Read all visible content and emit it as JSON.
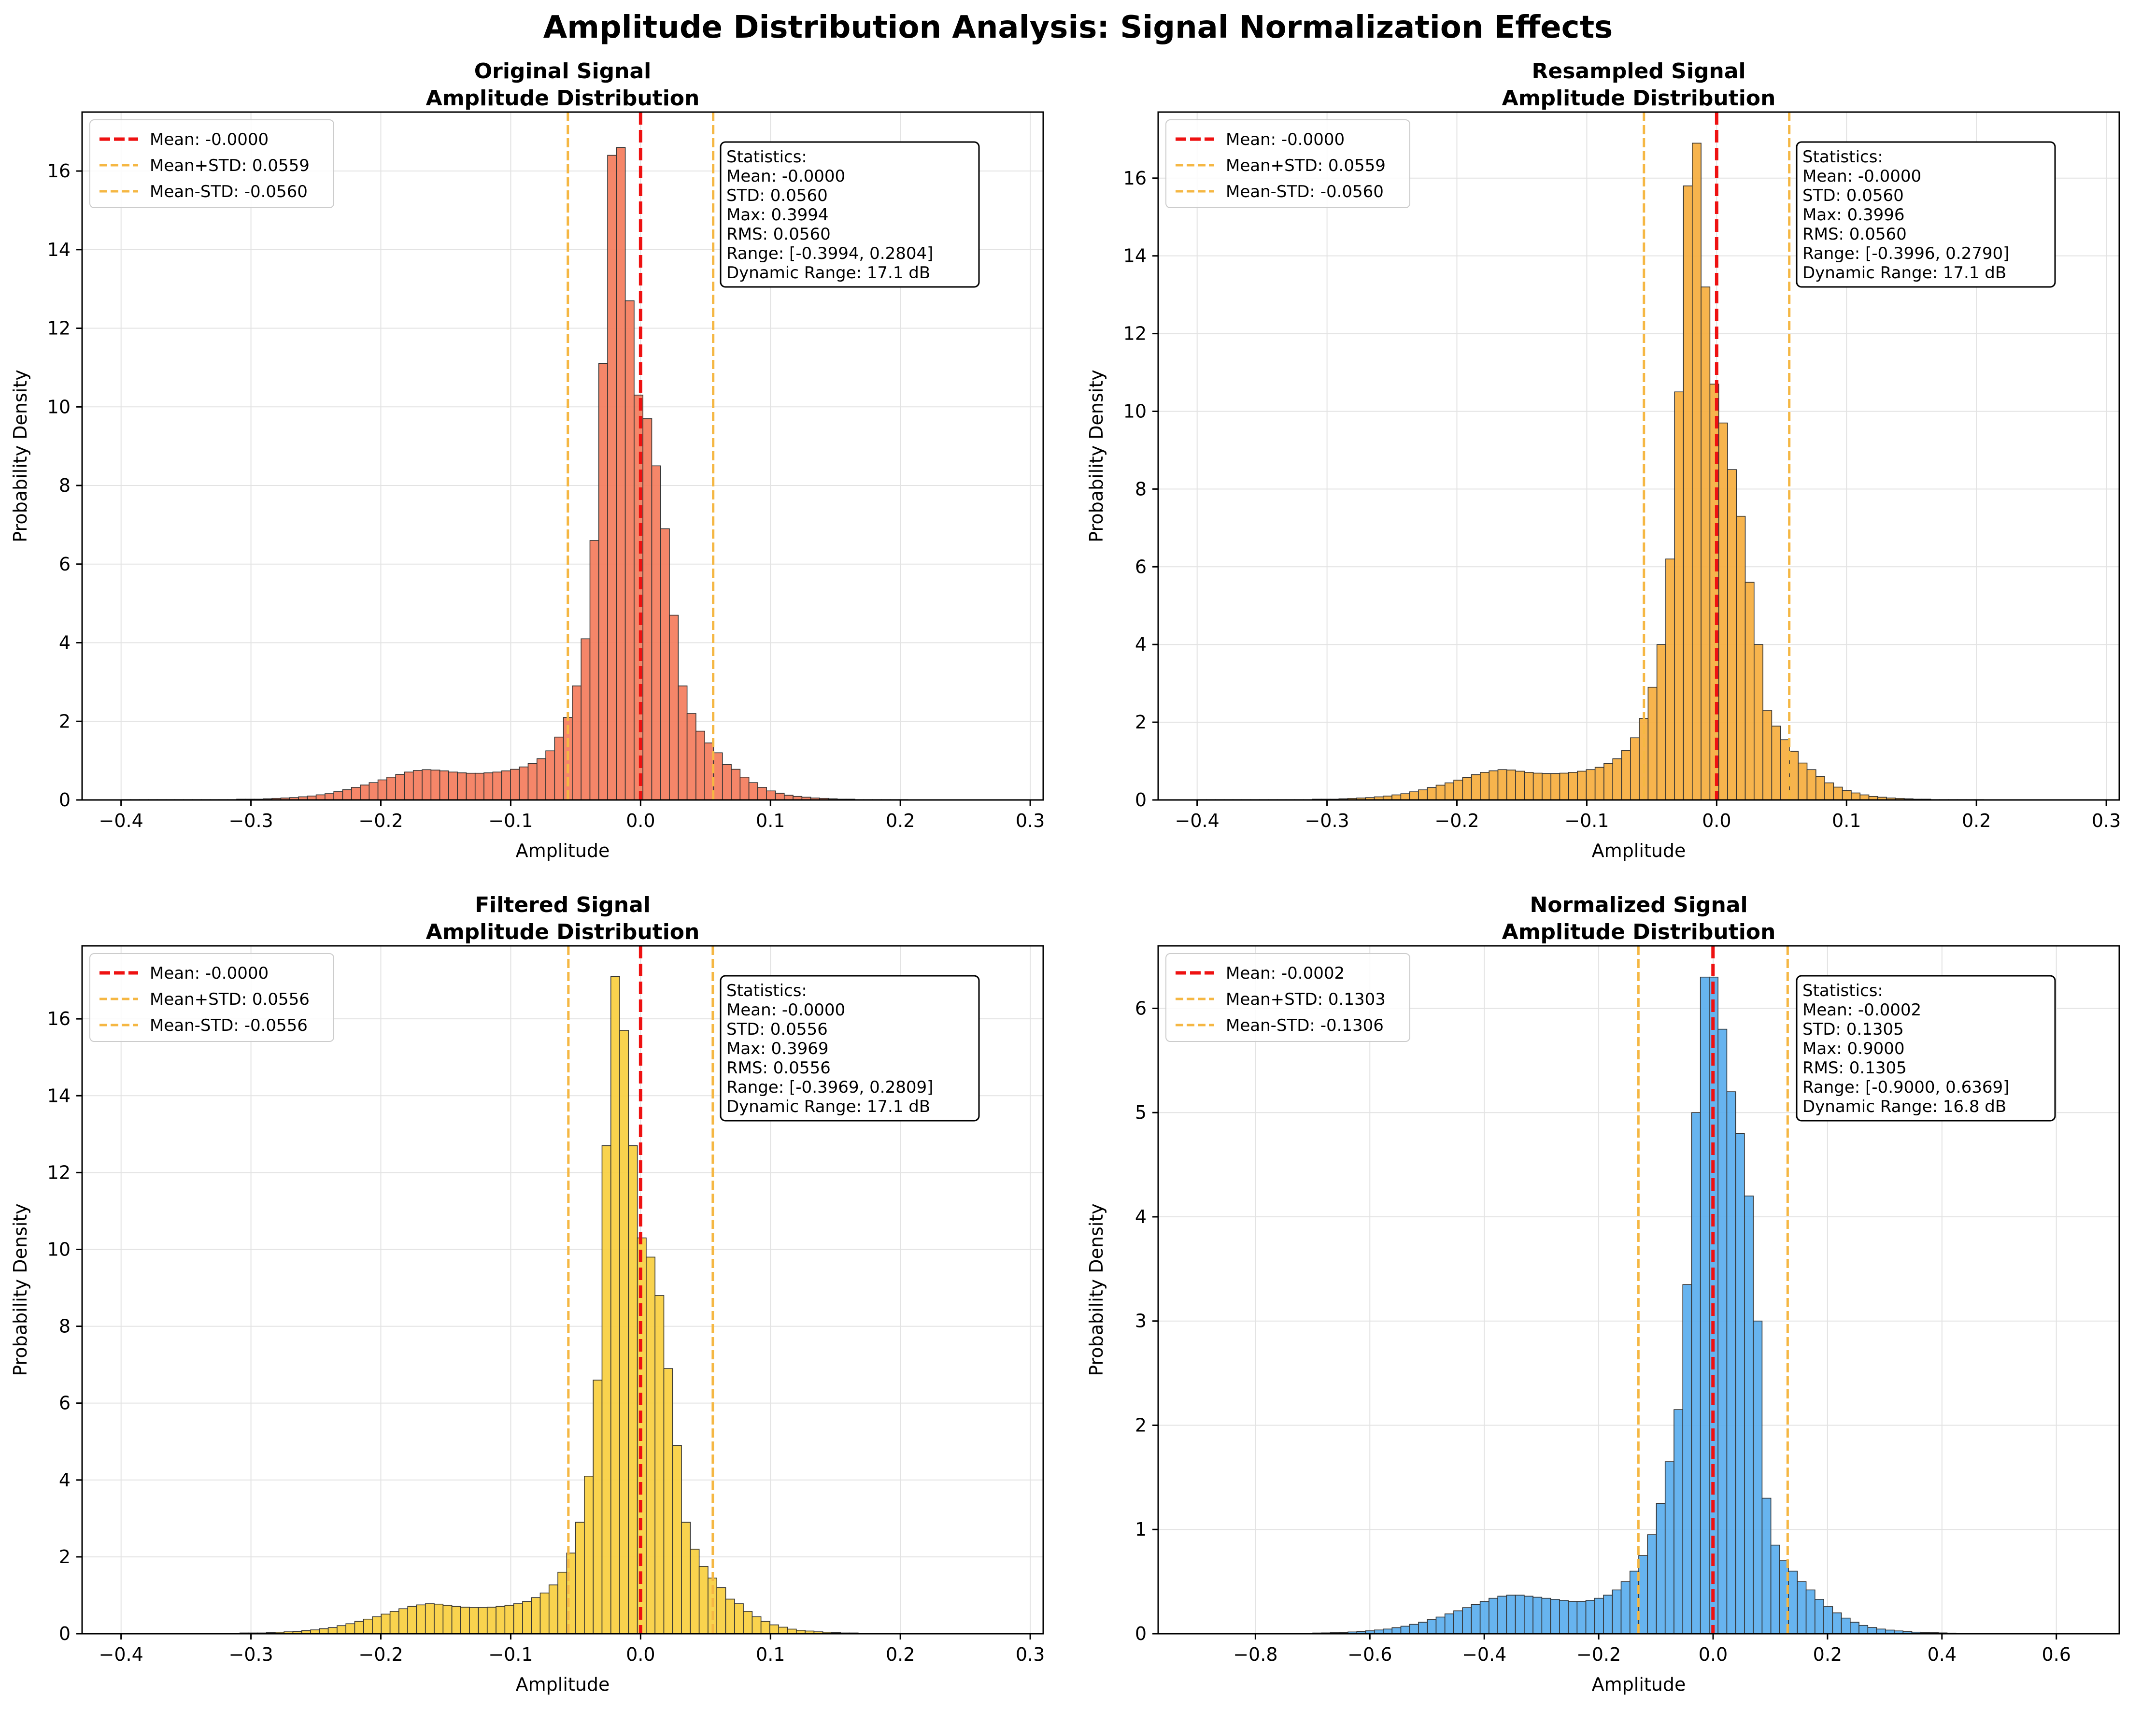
{
  "figure_title": "Amplitude Distribution Analysis: Signal Normalization Effects",
  "colors": {
    "mean_line": "#ee1111",
    "std_line": "#f5b743",
    "grid": "#e3e3e3",
    "bar_edge": "#333333"
  },
  "chart_data": [
    {
      "type": "bar",
      "title": "Original Signal\nAmplitude Distribution",
      "xlabel": "Amplitude",
      "ylabel": "Probability Density",
      "xlim": [
        -0.43,
        0.31
      ],
      "ylim": [
        0,
        17.5
      ],
      "xticks": [
        -0.4,
        -0.3,
        -0.2,
        -0.1,
        0.0,
        0.1,
        0.2,
        0.3
      ],
      "xtick_labels": [
        "−0.4",
        "−0.3",
        "−0.2",
        "−0.1",
        "0.0",
        "0.1",
        "0.2",
        "0.3"
      ],
      "yticks": [
        0,
        2,
        4,
        6,
        8,
        10,
        12,
        14,
        16
      ],
      "ytick_labels": [
        "0",
        "2",
        "4",
        "6",
        "8",
        "10",
        "12",
        "14",
        "16"
      ],
      "bar_color": "#f47c5c",
      "bin_start": -0.3994,
      "bin_width": 0.0068,
      "values": [
        0.01,
        0.01,
        0.01,
        0.01,
        0.01,
        0.01,
        0.01,
        0.01,
        0.01,
        0.01,
        0.01,
        0.01,
        0.01,
        0.02,
        0.02,
        0.02,
        0.03,
        0.04,
        0.05,
        0.06,
        0.08,
        0.1,
        0.13,
        0.16,
        0.21,
        0.26,
        0.32,
        0.38,
        0.44,
        0.51,
        0.58,
        0.65,
        0.71,
        0.75,
        0.77,
        0.76,
        0.74,
        0.71,
        0.69,
        0.68,
        0.68,
        0.69,
        0.71,
        0.74,
        0.78,
        0.84,
        0.93,
        1.05,
        1.25,
        1.6,
        2.1,
        2.9,
        4.1,
        6.6,
        11.1,
        16.4,
        16.6,
        12.7,
        10.3,
        9.7,
        8.5,
        6.9,
        4.7,
        2.9,
        2.2,
        1.75,
        1.45,
        1.2,
        0.9,
        0.78,
        0.58,
        0.44,
        0.32,
        0.23,
        0.17,
        0.12,
        0.09,
        0.07,
        0.05,
        0.04,
        0.03,
        0.02,
        0.02,
        0.01,
        0.01,
        0.01,
        0.01,
        0.01,
        0.01,
        0.0,
        0.0,
        0.0,
        0.0,
        0.0,
        0.0,
        0.0,
        0.0,
        0.0,
        0.0,
        0.0
      ],
      "mean": -0.0,
      "mean_plus_std": 0.0559,
      "mean_minus_std": -0.056,
      "legend": [
        "Mean: -0.0000",
        "Mean+STD: 0.0559",
        "Mean-STD: -0.0560"
      ],
      "stats": [
        "Statistics:",
        "Mean: -0.0000",
        "STD: 0.0560",
        "Max: 0.3994",
        "RMS: 0.0560",
        "Range: [-0.3994, 0.2804]",
        "Dynamic Range: 17.1 dB"
      ]
    },
    {
      "type": "bar",
      "title": "Resampled Signal\nAmplitude Distribution",
      "xlabel": "Amplitude",
      "ylabel": "Probability Density",
      "xlim": [
        -0.43,
        0.31
      ],
      "ylim": [
        0,
        17.7
      ],
      "xticks": [
        -0.4,
        -0.3,
        -0.2,
        -0.1,
        0.0,
        0.1,
        0.2,
        0.3
      ],
      "xtick_labels": [
        "−0.4",
        "−0.3",
        "−0.2",
        "−0.1",
        "0.0",
        "0.1",
        "0.2",
        "0.3"
      ],
      "yticks": [
        0,
        2,
        4,
        6,
        8,
        10,
        12,
        14,
        16
      ],
      "ytick_labels": [
        "0",
        "2",
        "4",
        "6",
        "8",
        "10",
        "12",
        "14",
        "16"
      ],
      "bar_color": "#f6ae3e",
      "bin_start": -0.3996,
      "bin_width": 0.0068,
      "values": [
        0.01,
        0.01,
        0.01,
        0.01,
        0.01,
        0.01,
        0.01,
        0.01,
        0.01,
        0.01,
        0.01,
        0.01,
        0.01,
        0.02,
        0.02,
        0.02,
        0.03,
        0.04,
        0.05,
        0.06,
        0.08,
        0.1,
        0.13,
        0.16,
        0.21,
        0.26,
        0.32,
        0.38,
        0.44,
        0.51,
        0.58,
        0.65,
        0.71,
        0.75,
        0.78,
        0.77,
        0.74,
        0.71,
        0.69,
        0.68,
        0.68,
        0.69,
        0.71,
        0.74,
        0.78,
        0.84,
        0.94,
        1.06,
        1.27,
        1.6,
        2.1,
        2.9,
        4.0,
        6.2,
        10.5,
        15.8,
        16.9,
        13.2,
        10.7,
        9.7,
        8.5,
        7.3,
        5.6,
        4.0,
        2.3,
        1.9,
        1.55,
        1.25,
        0.95,
        0.78,
        0.6,
        0.44,
        0.33,
        0.24,
        0.18,
        0.13,
        0.09,
        0.07,
        0.05,
        0.04,
        0.03,
        0.02,
        0.02,
        0.01,
        0.01,
        0.01,
        0.01,
        0.01,
        0.01,
        0.0,
        0.0,
        0.0,
        0.0,
        0.0,
        0.0,
        0.0,
        0.0,
        0.0,
        0.0,
        0.0
      ],
      "mean": -0.0,
      "mean_plus_std": 0.0559,
      "mean_minus_std": -0.056,
      "legend": [
        "Mean: -0.0000",
        "Mean+STD: 0.0559",
        "Mean-STD: -0.0560"
      ],
      "stats": [
        "Statistics:",
        "Mean: -0.0000",
        "STD: 0.0560",
        "Max: 0.3996",
        "RMS: 0.0560",
        "Range: [-0.3996, 0.2790]",
        "Dynamic Range: 17.1 dB"
      ]
    },
    {
      "type": "bar",
      "title": "Filtered Signal\nAmplitude Distribution",
      "xlabel": "Amplitude",
      "ylabel": "Probability Density",
      "xlim": [
        -0.43,
        0.31
      ],
      "ylim": [
        0,
        17.9
      ],
      "xticks": [
        -0.4,
        -0.3,
        -0.2,
        -0.1,
        0.0,
        0.1,
        0.2,
        0.3
      ],
      "xtick_labels": [
        "−0.4",
        "−0.3",
        "−0.2",
        "−0.1",
        "0.0",
        "0.1",
        "0.2",
        "0.3"
      ],
      "yticks": [
        0,
        2,
        4,
        6,
        8,
        10,
        12,
        14,
        16
      ],
      "ytick_labels": [
        "0",
        "2",
        "4",
        "6",
        "8",
        "10",
        "12",
        "14",
        "16"
      ],
      "bar_color": "#f9cf3f",
      "bin_start": -0.3969,
      "bin_width": 0.0068,
      "values": [
        0.01,
        0.01,
        0.01,
        0.01,
        0.01,
        0.01,
        0.01,
        0.01,
        0.01,
        0.01,
        0.01,
        0.01,
        0.01,
        0.02,
        0.02,
        0.02,
        0.03,
        0.04,
        0.05,
        0.06,
        0.08,
        0.1,
        0.13,
        0.16,
        0.21,
        0.26,
        0.32,
        0.38,
        0.44,
        0.51,
        0.58,
        0.65,
        0.71,
        0.75,
        0.78,
        0.77,
        0.74,
        0.71,
        0.69,
        0.68,
        0.68,
        0.69,
        0.71,
        0.74,
        0.78,
        0.84,
        0.94,
        1.06,
        1.27,
        1.6,
        2.1,
        2.9,
        4.1,
        6.6,
        12.7,
        17.1,
        15.7,
        12.7,
        10.3,
        9.8,
        8.8,
        6.9,
        4.9,
        2.9,
        2.2,
        1.75,
        1.45,
        1.2,
        0.9,
        0.78,
        0.58,
        0.44,
        0.32,
        0.23,
        0.17,
        0.12,
        0.09,
        0.07,
        0.05,
        0.04,
        0.03,
        0.02,
        0.02,
        0.01,
        0.01,
        0.01,
        0.01,
        0.01,
        0.01,
        0.0,
        0.0,
        0.0,
        0.0,
        0.0,
        0.0,
        0.0,
        0.0,
        0.0,
        0.0,
        0.0
      ],
      "mean": -0.0,
      "mean_plus_std": 0.0556,
      "mean_minus_std": -0.0556,
      "legend": [
        "Mean: -0.0000",
        "Mean+STD: 0.0556",
        "Mean-STD: -0.0556"
      ],
      "stats": [
        "Statistics:",
        "Mean: -0.0000",
        "STD: 0.0556",
        "Max: 0.3969",
        "RMS: 0.0556",
        "Range: [-0.3969, 0.2809]",
        "Dynamic Range: 17.1 dB"
      ]
    },
    {
      "type": "bar",
      "title": "Normalized Signal\nAmplitude Distribution",
      "xlabel": "Amplitude",
      "ylabel": "Probability Density",
      "xlim": [
        -0.97,
        0.71
      ],
      "ylim": [
        0,
        6.6
      ],
      "xticks": [
        -0.8,
        -0.6,
        -0.4,
        -0.2,
        0.0,
        0.2,
        0.4,
        0.6
      ],
      "xtick_labels": [
        "−0.8",
        "−0.6",
        "−0.4",
        "−0.2",
        "0.0",
        "0.2",
        "0.4",
        "0.6"
      ],
      "yticks": [
        0,
        1,
        2,
        3,
        4,
        5,
        6
      ],
      "ytick_labels": [
        "0",
        "1",
        "2",
        "3",
        "4",
        "5",
        "6"
      ],
      "bar_color": "#5aaeee",
      "bin_start": -0.9,
      "bin_width": 0.0154,
      "values": [
        0.005,
        0.005,
        0.005,
        0.005,
        0.005,
        0.005,
        0.005,
        0.005,
        0.005,
        0.005,
        0.005,
        0.005,
        0.005,
        0.007,
        0.008,
        0.01,
        0.013,
        0.017,
        0.022,
        0.028,
        0.036,
        0.045,
        0.058,
        0.072,
        0.09,
        0.11,
        0.135,
        0.16,
        0.19,
        0.22,
        0.25,
        0.28,
        0.31,
        0.34,
        0.36,
        0.37,
        0.37,
        0.36,
        0.35,
        0.34,
        0.33,
        0.32,
        0.31,
        0.31,
        0.32,
        0.34,
        0.37,
        0.42,
        0.5,
        0.6,
        0.75,
        0.95,
        1.25,
        1.65,
        2.15,
        3.35,
        5.0,
        6.3,
        6.3,
        5.8,
        5.2,
        4.8,
        4.2,
        3.0,
        1.3,
        0.85,
        0.7,
        0.6,
        0.5,
        0.42,
        0.33,
        0.26,
        0.2,
        0.15,
        0.11,
        0.08,
        0.06,
        0.045,
        0.035,
        0.027,
        0.02,
        0.015,
        0.012,
        0.01,
        0.008,
        0.006,
        0.005,
        0.004,
        0.003,
        0.002,
        0.002,
        0.001,
        0.001,
        0.001,
        0.001,
        0.001,
        0.001,
        0.001,
        0.001,
        0.001
      ],
      "mean": -0.0002,
      "mean_plus_std": 0.1303,
      "mean_minus_std": -0.1306,
      "legend": [
        "Mean: -0.0002",
        "Mean+STD: 0.1303",
        "Mean-STD: -0.1306"
      ],
      "stats": [
        "Statistics:",
        "Mean: -0.0002",
        "STD: 0.1305",
        "Max: 0.9000",
        "RMS: 0.1305",
        "Range: [-0.9000, 0.6369]",
        "Dynamic Range: 16.8 dB"
      ]
    }
  ]
}
